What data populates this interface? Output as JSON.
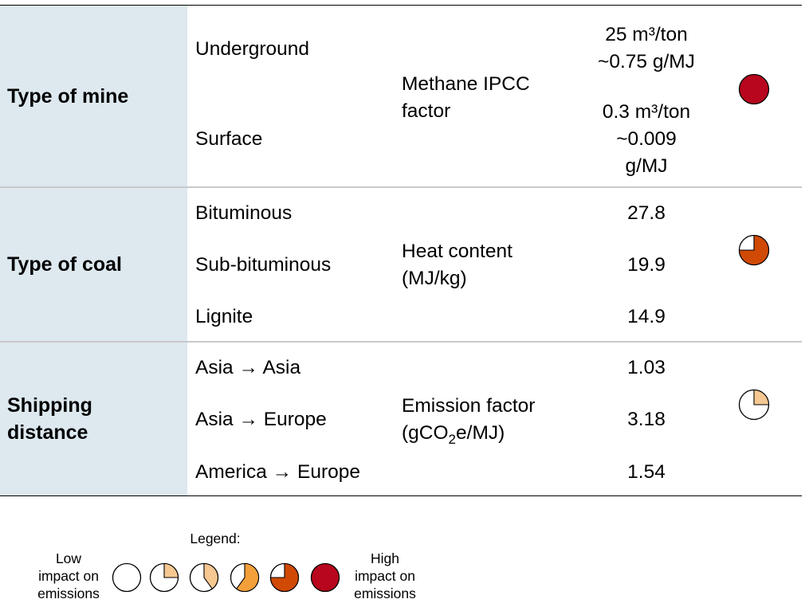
{
  "rows": [
    {
      "header": "Type of mine",
      "options": [
        "Underground",
        "Surface"
      ],
      "parameter_lines": [
        "Methane IPCC",
        "factor"
      ],
      "values": [
        [
          "25 m³/ton",
          "~0.75 g/MJ"
        ],
        [
          "0.3 m³/ton",
          "~0.009",
          "g/MJ"
        ]
      ],
      "impact": 1.0
    },
    {
      "header": "Type of coal",
      "options": [
        "Bituminous",
        "Sub-bituminous",
        "Lignite"
      ],
      "parameter_lines": [
        "Heat content",
        "(MJ/kg)"
      ],
      "values": [
        "27.8",
        "19.9",
        "14.9"
      ],
      "impact": 0.75
    },
    {
      "header_lines": [
        "Shipping",
        "distance"
      ],
      "options": [
        "Asia",
        "Asia",
        "America"
      ],
      "destinations": [
        "Asia",
        "Europe",
        "Europe"
      ],
      "arrow": "→",
      "parameter_line1": "Emission factor",
      "parameter_line2_prefix": "(gCO",
      "parameter_line2_subscript": "2",
      "parameter_line2_suffix": "e/MJ)",
      "values": [
        "1.03",
        "3.18",
        "1.54"
      ],
      "impact": 0.25
    }
  ],
  "legend": {
    "title": "Legend:",
    "low_lines": [
      "Low",
      "impact on",
      "emissions"
    ],
    "high_lines": [
      "High",
      "impact on",
      "emissions"
    ],
    "levels": [
      0,
      0.25,
      0.4,
      0.6,
      0.75,
      1.0
    ]
  },
  "colors": {
    "header_bg": "#dde8ef",
    "pie_light": "#f5c791",
    "pie_mid": "#f3a03a",
    "pie_dark": "#d04a06",
    "pie_full": "#b7061d"
  }
}
